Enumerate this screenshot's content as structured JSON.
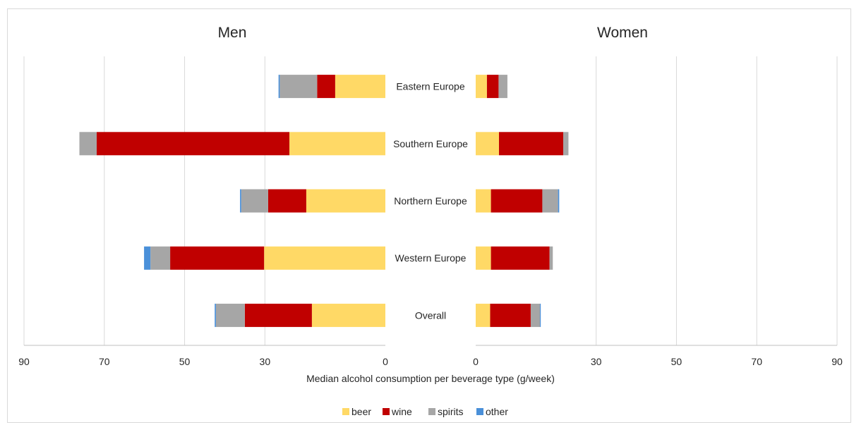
{
  "chart_data": {
    "type": "bar",
    "orientation": "horizontal",
    "stacked": true,
    "layout": "back-to-back",
    "xlabel": "Median alcohol consumption per beverage type (g/week)",
    "xlim": [
      0,
      90
    ],
    "ticks": [
      "90",
      "70",
      "50",
      "30",
      "0",
      "0",
      "30",
      "50",
      "70",
      "90"
    ],
    "tick_values_left": [
      90,
      70,
      50,
      30,
      0
    ],
    "tick_values_right": [
      0,
      30,
      50,
      70,
      90
    ],
    "grid": true,
    "legend_position": "bottom",
    "categories": [
      "Eastern Europe",
      "Southern Europe",
      "Northern Europe",
      "Western Europe",
      "Overall"
    ],
    "series_names": [
      "beer",
      "wine",
      "spirits",
      "other"
    ],
    "colors": {
      "beer": "#ffd966",
      "wine": "#c00000",
      "spirits": "#a6a6a6",
      "other": "#4a90d9"
    },
    "panels": [
      {
        "title": "Men",
        "series": [
          {
            "name": "beer",
            "values": [
              12.5,
              23.9,
              19.7,
              30.2,
              18.3
            ]
          },
          {
            "name": "wine",
            "values": [
              4.5,
              48.0,
              9.5,
              23.4,
              16.7
            ]
          },
          {
            "name": "spirits",
            "values": [
              9.3,
              4.3,
              6.7,
              4.9,
              7.2
            ]
          },
          {
            "name": "other",
            "values": [
              0.3,
              0.0,
              0.3,
              1.6,
              0.3
            ]
          }
        ]
      },
      {
        "title": "Women",
        "series": [
          {
            "name": "beer",
            "values": [
              2.8,
              5.8,
              3.8,
              3.8,
              3.6
            ]
          },
          {
            "name": "wine",
            "values": [
              2.9,
              16.0,
              12.8,
              14.6,
              10.1
            ]
          },
          {
            "name": "spirits",
            "values": [
              2.2,
              1.3,
              3.9,
              0.8,
              2.3
            ]
          },
          {
            "name": "other",
            "values": [
              0.0,
              0.0,
              0.3,
              0.0,
              0.2
            ]
          }
        ]
      }
    ]
  }
}
